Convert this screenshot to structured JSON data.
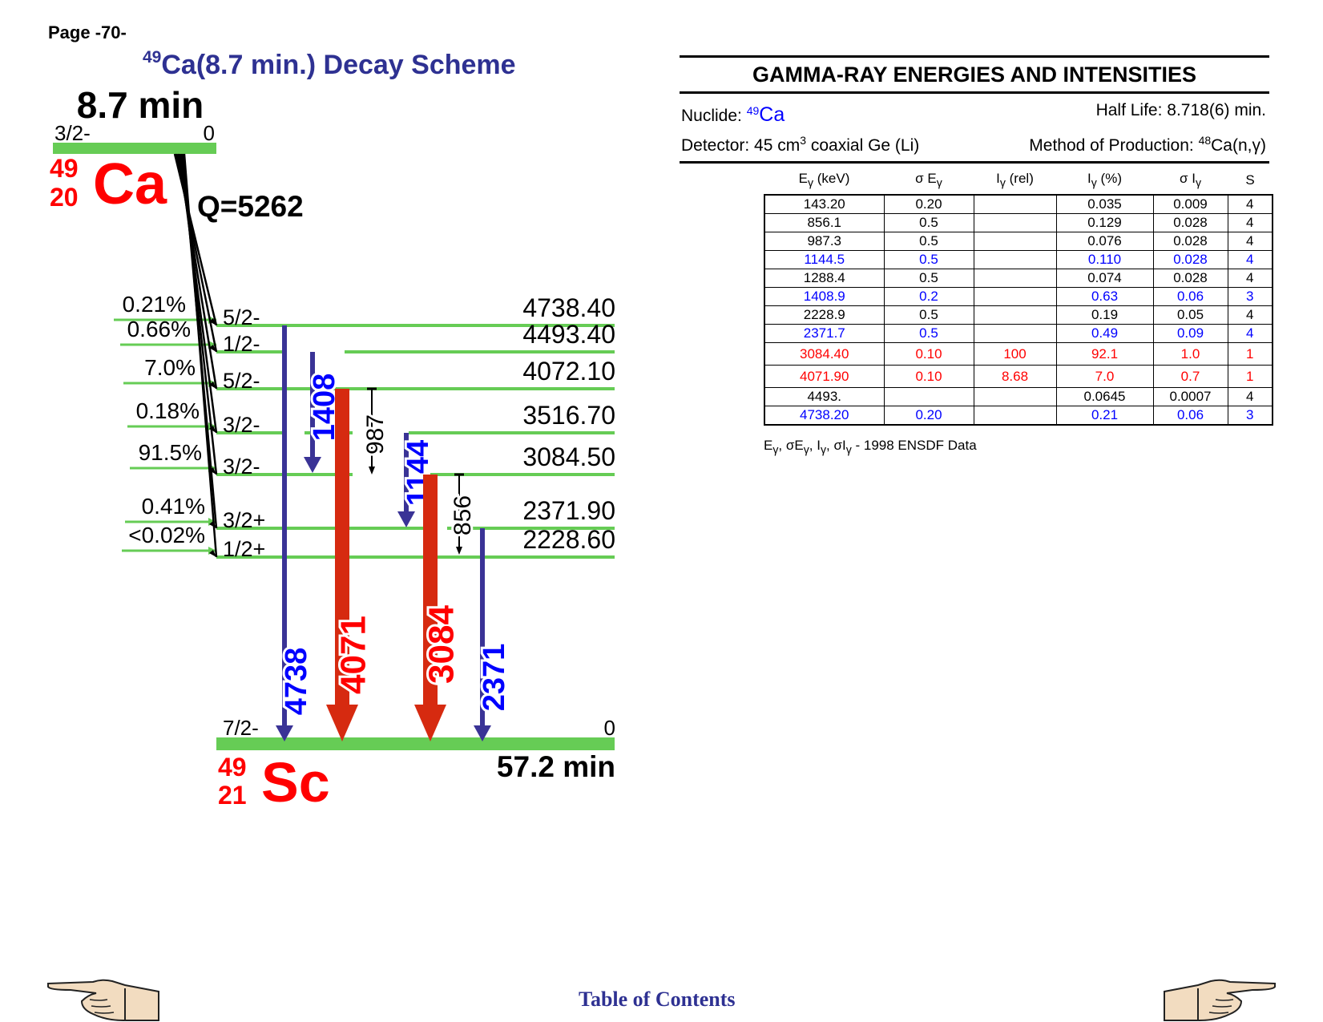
{
  "page": {
    "page_label": "Page -70-",
    "title_mass": "49",
    "title_rest": "Ca(8.7 min.) Decay Scheme",
    "toc_label": "Table of Contents"
  },
  "scheme": {
    "parent": {
      "halflife": "8.7 min",
      "spin": "3/2-",
      "energy": "0",
      "A": "49",
      "Z": "20",
      "symbol": "Ca",
      "q_value": "Q=5262"
    },
    "daughter": {
      "spin": "7/2-",
      "energy": "0",
      "A": "49",
      "Z": "21",
      "symbol": "Sc",
      "halflife": "57.2 min"
    },
    "levels": [
      {
        "spin": "5/2-",
        "energy": "4738.40",
        "branch": "0.21%"
      },
      {
        "spin": "1/2-",
        "energy": "4493.40",
        "branch": "0.66%"
      },
      {
        "spin": "5/2-",
        "energy": "4072.10",
        "branch": "7.0%"
      },
      {
        "spin": "3/2-",
        "energy": "3516.70",
        "branch": "0.18%"
      },
      {
        "spin": "3/2-",
        "energy": "3084.50",
        "branch": "91.5%"
      },
      {
        "spin": "3/2+",
        "energy": "2371.90",
        "branch": "0.41%"
      },
      {
        "spin": "1/2+",
        "energy": "2228.60",
        "branch": "<0.02%"
      }
    ],
    "transitions": [
      {
        "label": "4738",
        "color": "#0000ff",
        "arrow_color": "#3a3396",
        "strength": "minor"
      },
      {
        "label": "1408",
        "color": "#0000ff",
        "arrow_color": "#3a3396",
        "strength": "minor"
      },
      {
        "label": "4071",
        "color": "#ff0000",
        "arrow_color": "#d62a10",
        "strength": "major"
      },
      {
        "label": "987",
        "color": "#000000",
        "arrow_color": "#000000",
        "strength": "weak"
      },
      {
        "label": "1144",
        "color": "#0000ff",
        "arrow_color": "#3a3396",
        "strength": "minor"
      },
      {
        "label": "3084",
        "color": "#ff0000",
        "arrow_color": "#d62a10",
        "strength": "major"
      },
      {
        "label": "856",
        "color": "#000000",
        "arrow_color": "#000000",
        "strength": "weak"
      },
      {
        "label": "2371",
        "color": "#0000ff",
        "arrow_color": "#3a3396",
        "strength": "minor"
      }
    ],
    "colors": {
      "level_line": "#66cc55",
      "nuclide_red": "#ff0000"
    }
  },
  "gamma_panel": {
    "title": "GAMMA-RAY ENERGIES AND INTENSITIES",
    "nuclide_label": "Nuclide: ",
    "nuclide_mass": "49",
    "nuclide_symbol": "Ca",
    "half_life": "Half Life: 8.718(6) min.",
    "detector_pre": "Detector: 45 cm",
    "detector_sup": "3",
    "detector_post": " coaxial Ge (Li)",
    "production_pre": "Method of Production: ",
    "production_sup": "48",
    "production_post": "Ca(n,γ)",
    "headers": {
      "e_main": "E",
      "e_sub": "γ",
      "e_unit": " (keV)",
      "se_main": "σ E",
      "se_sub": "γ",
      "irel_main": "I",
      "irel_sub": "γ",
      "irel_unit": " (rel)",
      "ipct_main": "I",
      "ipct_sub": "γ",
      "ipct_unit": " (%)",
      "si_main": "σ I",
      "si_sub": "γ",
      "s": "S"
    },
    "rows": [
      {
        "e": "143.20",
        "se": "0.20",
        "irel": "",
        "ipct": "0.035",
        "si": "0.009",
        "s": "4",
        "color": "black"
      },
      {
        "e": "856.1",
        "se": "0.5",
        "irel": "",
        "ipct": "0.129",
        "si": "0.028",
        "s": "4",
        "color": "black"
      },
      {
        "e": "987.3",
        "se": "0.5",
        "irel": "",
        "ipct": "0.076",
        "si": "0.028",
        "s": "4",
        "color": "black"
      },
      {
        "e": "1144.5",
        "se": "0.5",
        "irel": "",
        "ipct": "0.110",
        "si": "0.028",
        "s": "4",
        "color": "blue"
      },
      {
        "e": "1288.4",
        "se": "0.5",
        "irel": "",
        "ipct": "0.074",
        "si": "0.028",
        "s": "4",
        "color": "black"
      },
      {
        "e": "1408.9",
        "se": "0.2",
        "irel": "",
        "ipct": "0.63",
        "si": "0.06",
        "s": "3",
        "color": "blue"
      },
      {
        "e": "2228.9",
        "se": "0.5",
        "irel": "",
        "ipct": "0.19",
        "si": "0.05",
        "s": "4",
        "color": "black"
      },
      {
        "e": "2371.7",
        "se": "0.5",
        "irel": "",
        "ipct": "0.49",
        "si": "0.09",
        "s": "4",
        "color": "blue"
      },
      {
        "e": "3084.40",
        "se": "0.10",
        "irel": "100",
        "ipct": "92.1",
        "si": "1.0",
        "s": "1",
        "color": "red"
      },
      {
        "e": "4071.90",
        "se": "0.10",
        "irel": "8.68",
        "ipct": "7.0",
        "si": "0.7",
        "s": "1",
        "color": "red"
      },
      {
        "e": "4493.",
        "se": "",
        "irel": "",
        "ipct": "0.0645",
        "si": "0.0007",
        "s": "4",
        "color": "black"
      },
      {
        "e": "4738.20",
        "se": "0.20",
        "irel": "",
        "ipct": "0.21",
        "si": "0.06",
        "s": "3",
        "color": "blue"
      }
    ],
    "footnote": {
      "e": "E",
      "g": "γ",
      "se": ", σE",
      "i": ", I",
      "si": ", σI",
      "tail": " - 1998 ENSDF Data"
    }
  }
}
